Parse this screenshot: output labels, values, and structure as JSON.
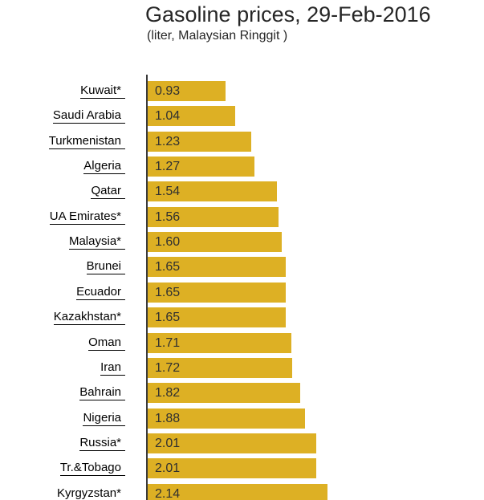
{
  "chart_data": {
    "type": "bar",
    "orientation": "horizontal",
    "title": "Gasoline prices, 29-Feb-2016",
    "subtitle": "(liter, Malaysian Ringgit )",
    "categories": [
      "Kuwait*",
      "Saudi Arabia",
      "Turkmenistan",
      "Algeria",
      "Qatar",
      "UA Emirates*",
      "Malaysia*",
      "Brunei",
      "Ecuador",
      "Kazakhstan*",
      "Oman",
      "Iran",
      "Bahrain",
      "Nigeria",
      "Russia*",
      "Tr.&Tobago",
      "Kyrgyzstan*"
    ],
    "values": [
      0.93,
      1.04,
      1.23,
      1.27,
      1.54,
      1.56,
      1.6,
      1.65,
      1.65,
      1.65,
      1.71,
      1.72,
      1.82,
      1.88,
      2.01,
      2.01,
      2.14
    ],
    "value_labels": [
      "0.93",
      "1.04",
      "1.23",
      "1.27",
      "1.54",
      "1.56",
      "1.60",
      "1.65",
      "1.65",
      "1.65",
      "1.71",
      "1.72",
      "1.82",
      "1.88",
      "2.01",
      "2.01",
      "2.14"
    ],
    "xlim": [
      0,
      2.2
    ],
    "grid": false,
    "legend": false,
    "data_labels_inside_bars": true,
    "category_labels_are_links": true,
    "colors": {
      "bar": "#DDB024",
      "axis_line": "#3a3a3a",
      "title_text": "#262626",
      "category_text": "#000000",
      "value_text": "#303030",
      "background": "#ffffff"
    }
  }
}
